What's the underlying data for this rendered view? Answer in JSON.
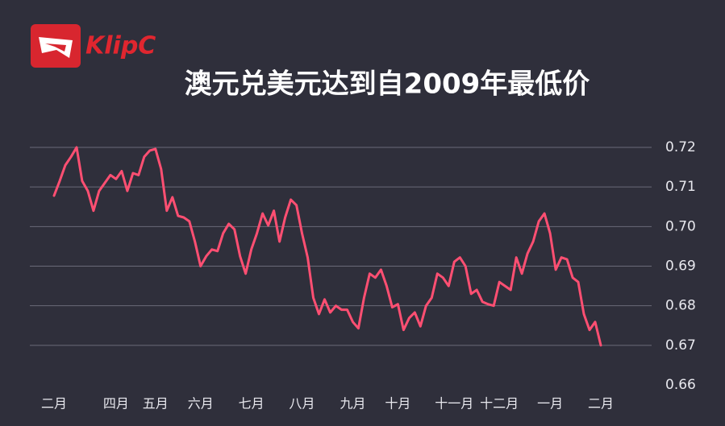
{
  "brand": "KlipC",
  "chart_data": {
    "type": "line",
    "title": "澳元兑美元达到自2009年最低价",
    "categories": [
      "二月",
      null,
      null,
      null,
      null,
      null,
      null,
      null,
      null,
      null,
      null,
      "四月",
      null,
      null,
      null,
      null,
      null,
      null,
      "五月",
      null,
      null,
      null,
      null,
      null,
      null,
      null,
      "六月",
      null,
      null,
      null,
      null,
      null,
      null,
      null,
      null,
      "七月",
      null,
      null,
      null,
      null,
      null,
      null,
      null,
      null,
      "八月",
      null,
      null,
      null,
      null,
      null,
      null,
      null,
      null,
      "九月",
      null,
      null,
      null,
      null,
      null,
      null,
      null,
      "十月",
      null,
      null,
      null,
      null,
      null,
      null,
      null,
      null,
      null,
      "十一月",
      null,
      null,
      null,
      null,
      null,
      null,
      null,
      "十二月",
      null,
      null,
      null,
      null,
      null,
      null,
      null,
      null,
      "一月",
      null,
      null,
      null,
      null,
      null,
      null,
      null,
      null,
      "二月"
    ],
    "series": [
      {
        "color": "#ff4f72",
        "values": [
          0.7078,
          0.7115,
          0.7155,
          0.7176,
          0.72,
          0.7115,
          0.709,
          0.704,
          0.709,
          0.711,
          0.713,
          0.712,
          0.714,
          0.709,
          0.7135,
          0.713,
          0.7176,
          0.7192,
          0.7196,
          0.7145,
          0.704,
          0.7074,
          0.7027,
          0.7023,
          0.7013,
          0.6962,
          0.69,
          0.6925,
          0.6942,
          0.6938,
          0.6983,
          0.7007,
          0.6993,
          0.6925,
          0.6881,
          0.6942,
          0.6983,
          0.7033,
          0.7003,
          0.704,
          0.6962,
          0.7023,
          0.7068,
          0.7054,
          0.6983,
          0.6922,
          0.682,
          0.6779,
          0.6816,
          0.6783,
          0.68,
          0.679,
          0.679,
          0.6759,
          0.6743,
          0.682,
          0.6881,
          0.6871,
          0.6891,
          0.685,
          0.6796,
          0.6804,
          0.6739,
          0.6769,
          0.6783,
          0.6748,
          0.68,
          0.682,
          0.6881,
          0.6871,
          0.685,
          0.6911,
          0.6922,
          0.69,
          0.683,
          0.684,
          0.681,
          0.6804,
          0.68,
          0.686,
          0.685,
          0.684,
          0.6922,
          0.6881,
          0.6932,
          0.6962,
          0.7013,
          0.7033,
          0.6983,
          0.6891,
          0.6922,
          0.6917,
          0.6871,
          0.686,
          0.6779,
          0.6739,
          0.6759,
          0.67
        ]
      }
    ],
    "ylim": [
      0.66,
      0.72
    ],
    "yticks": [
      0.66,
      0.67,
      0.68,
      0.69,
      {
        "value": 0.7,
        "label": "0.70"
      },
      0.71,
      0.72
    ],
    "grid": true
  }
}
